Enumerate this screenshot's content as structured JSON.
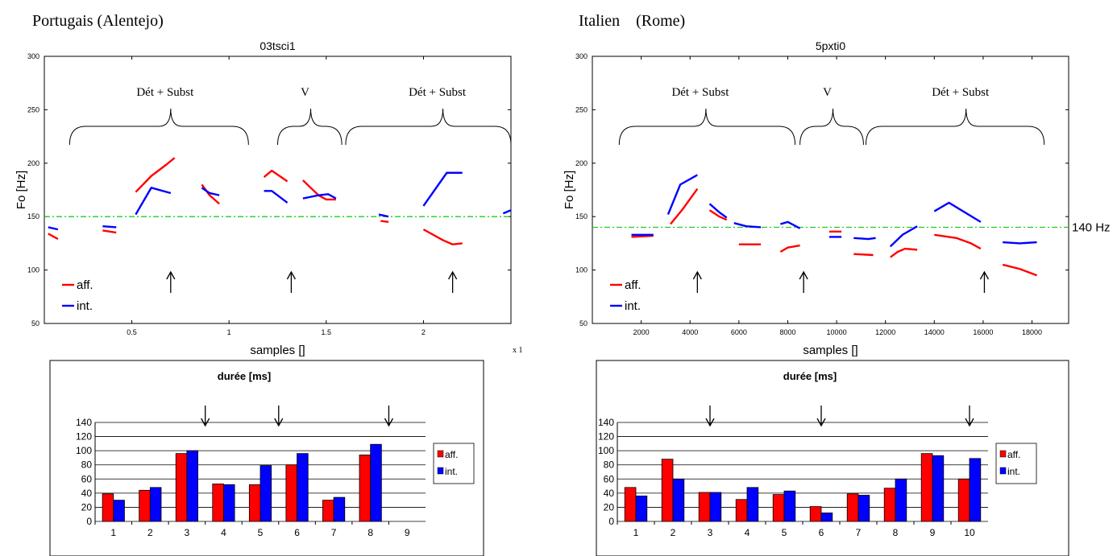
{
  "panels": [
    {
      "heading": "Portugais (Alentejo)",
      "f0": {
        "title": "03tsci1",
        "ylabel": "Fo [Hz]",
        "xlabel": "samples []",
        "x_exponent": "x 1",
        "xlim": [
          0.05,
          2.45
        ],
        "ylim": [
          50,
          300
        ],
        "yticks": [
          50,
          100,
          150,
          200,
          250,
          300
        ],
        "xticks": [
          0.5,
          1,
          1.5,
          2
        ],
        "xtick_labels": [
          "0.5",
          "1",
          "1.5",
          "2"
        ],
        "reference_level": 150,
        "reference_label": "",
        "legend": [
          {
            "name": "aff.",
            "color": "#ff0000"
          },
          {
            "name": "int.",
            "color": "#0000ff"
          }
        ],
        "groups": [
          {
            "label": "Dét + Subst",
            "x_start": 0.18,
            "x_end": 1.1,
            "tip": 0.7
          },
          {
            "label": "V",
            "x_start": 1.25,
            "x_end": 1.58,
            "tip": 1.42
          },
          {
            "label": "Dét + Subst",
            "x_start": 1.6,
            "x_end": 2.45,
            "tip": 2.1
          }
        ],
        "arrows_x": [
          0.7,
          1.32,
          2.15
        ],
        "series": [
          {
            "name": "aff.",
            "color": "#ff0000",
            "segments": [
              [
                [
                  0.07,
                  134
                ],
                [
                  0.12,
                  129
                ]
              ],
              [
                [
                  0.35,
                  137
                ],
                [
                  0.42,
                  135
                ]
              ],
              [
                [
                  0.52,
                  173
                ],
                [
                  0.6,
                  188
                ],
                [
                  0.68,
                  199
                ],
                [
                  0.72,
                  205
                ]
              ],
              [
                [
                  0.86,
                  180
                ],
                [
                  0.9,
                  170
                ],
                [
                  0.95,
                  162
                ]
              ],
              [
                [
                  1.18,
                  187
                ],
                [
                  1.22,
                  193
                ],
                [
                  1.3,
                  183
                ]
              ],
              [
                [
                  1.38,
                  184
                ],
                [
                  1.46,
                  170
                ],
                [
                  1.5,
                  166
                ],
                [
                  1.55,
                  166
                ]
              ],
              [
                [
                  1.78,
                  146
                ],
                [
                  1.82,
                  145
                ]
              ],
              [
                [
                  2.0,
                  138
                ],
                [
                  2.1,
                  128
                ],
                [
                  2.15,
                  124
                ],
                [
                  2.2,
                  125
                ]
              ]
            ]
          },
          {
            "name": "int.",
            "color": "#0000ff",
            "segments": [
              [
                [
                  0.07,
                  140
                ],
                [
                  0.12,
                  138
                ]
              ],
              [
                [
                  0.35,
                  141
                ],
                [
                  0.42,
                  140
                ]
              ],
              [
                [
                  0.52,
                  152
                ],
                [
                  0.6,
                  177
                ],
                [
                  0.7,
                  172
                ]
              ],
              [
                [
                  0.86,
                  177
                ],
                [
                  0.9,
                  172
                ],
                [
                  0.95,
                  170
                ]
              ],
              [
                [
                  1.18,
                  174
                ],
                [
                  1.22,
                  174
                ],
                [
                  1.3,
                  163
                ]
              ],
              [
                [
                  1.38,
                  167
                ],
                [
                  1.46,
                  170
                ],
                [
                  1.51,
                  171
                ],
                [
                  1.55,
                  167
                ]
              ],
              [
                [
                  1.77,
                  152
                ],
                [
                  1.82,
                  150
                ]
              ],
              [
                [
                  2.0,
                  160
                ],
                [
                  2.12,
                  191
                ],
                [
                  2.2,
                  191
                ]
              ],
              [
                [
                  2.41,
                  153
                ],
                [
                  2.45,
                  156
                ]
              ]
            ]
          }
        ]
      },
      "duree": {
        "type": "bar",
        "title": "durée [ms]",
        "categories": [
          "1",
          "2",
          "3",
          "4",
          "5",
          "6",
          "7",
          "8",
          "9"
        ],
        "ylim": [
          0,
          140
        ],
        "yticks": [
          0,
          20,
          40,
          60,
          80,
          100,
          120,
          140
        ],
        "series": [
          {
            "name": "aff.",
            "color": "#ff0000",
            "values": [
              39,
              44,
              96,
              53,
              52,
              80,
              30,
              94,
              0
            ]
          },
          {
            "name": "int.",
            "color": "#0000ff",
            "values": [
              30,
              48,
              100,
              52,
              79,
              96,
              34,
              109,
              0
            ]
          }
        ],
        "arrows_after_category": [
          3,
          5,
          8
        ]
      }
    },
    {
      "heading": "Italien    (Rome)",
      "f0": {
        "title": "5pxti0",
        "ylabel": "Fo [Hz]",
        "xlabel": "samples []",
        "x_exponent": "",
        "xlim": [
          0,
          19500
        ],
        "ylim": [
          50,
          300
        ],
        "yticks": [
          50,
          100,
          150,
          200,
          250,
          300
        ],
        "xticks": [
          2000,
          4000,
          6000,
          8000,
          10000,
          12000,
          14000,
          16000,
          18000
        ],
        "xtick_labels": [
          "2000",
          "4000",
          "6000",
          "8000",
          "10000",
          "12000",
          "14000",
          "16000",
          "18000"
        ],
        "reference_level": 140,
        "reference_label": "140 Hz",
        "legend": [
          {
            "name": "aff.",
            "color": "#ff0000"
          },
          {
            "name": "int.",
            "color": "#0000ff"
          }
        ],
        "groups": [
          {
            "label": "Dét + Subst",
            "x_start": 1100,
            "x_end": 8300,
            "tip": 4650
          },
          {
            "label": "V",
            "x_start": 8500,
            "x_end": 11100,
            "tip": 9850
          },
          {
            "label": "Dét + Subst",
            "x_start": 11200,
            "x_end": 18500,
            "tip": 15300
          }
        ],
        "arrows_x": [
          4300,
          8650,
          16050
        ],
        "series": [
          {
            "name": "aff.",
            "color": "#ff0000",
            "segments": [
              [
                [
                  1600,
                  131
                ],
                [
                  2500,
                  132
                ]
              ],
              [
                [
                  3200,
                  143
                ],
                [
                  3700,
                  157
                ],
                [
                  4300,
                  176
                ]
              ],
              [
                [
                  4800,
                  156
                ],
                [
                  5200,
                  150
                ],
                [
                  5500,
                  147
                ]
              ],
              [
                [
                  6000,
                  124
                ],
                [
                  6900,
                  124
                ]
              ],
              [
                [
                  7700,
                  117
                ],
                [
                  8000,
                  121
                ],
                [
                  8500,
                  123
                ]
              ],
              [
                [
                  9700,
                  136
                ],
                [
                  10200,
                  136
                ]
              ],
              [
                [
                  10700,
                  115
                ],
                [
                  11500,
                  114
                ]
              ],
              [
                [
                  12200,
                  112
                ],
                [
                  12500,
                  117
                ],
                [
                  12800,
                  120
                ],
                [
                  13300,
                  119
                ]
              ],
              [
                [
                  14000,
                  133
                ],
                [
                  14900,
                  130
                ],
                [
                  15500,
                  125
                ],
                [
                  15900,
                  120
                ]
              ],
              [
                [
                  16800,
                  105
                ],
                [
                  17500,
                  101
                ],
                [
                  18200,
                  95
                ]
              ]
            ]
          },
          {
            "name": "int.",
            "color": "#0000ff",
            "segments": [
              [
                [
                  1600,
                  133
                ],
                [
                  2500,
                  133
                ]
              ],
              [
                [
                  3100,
                  152
                ],
                [
                  3600,
                  180
                ],
                [
                  4300,
                  189
                ]
              ],
              [
                [
                  4800,
                  162
                ],
                [
                  5200,
                  154
                ],
                [
                  5500,
                  149
                ]
              ],
              [
                [
                  5800,
                  144
                ],
                [
                  6300,
                  141
                ],
                [
                  6900,
                  140
                ]
              ],
              [
                [
                  7700,
                  143
                ],
                [
                  8000,
                  145
                ],
                [
                  8500,
                  139
                ]
              ],
              [
                [
                  9700,
                  131
                ],
                [
                  10200,
                  131
                ]
              ],
              [
                [
                  10700,
                  130
                ],
                [
                  11300,
                  129
                ],
                [
                  11600,
                  130
                ]
              ],
              [
                [
                  12200,
                  122
                ],
                [
                  12700,
                  133
                ],
                [
                  13300,
                  141
                ]
              ],
              [
                [
                  14000,
                  155
                ],
                [
                  14600,
                  163
                ],
                [
                  15900,
                  145
                ]
              ],
              [
                [
                  16800,
                  126
                ],
                [
                  17500,
                  125
                ],
                [
                  18200,
                  126
                ]
              ]
            ]
          }
        ]
      },
      "duree": {
        "type": "bar",
        "title": "durée [ms]",
        "categories": [
          "1",
          "2",
          "3",
          "4",
          "5",
          "6",
          "7",
          "8",
          "9",
          "10"
        ],
        "ylim": [
          0,
          140
        ],
        "yticks": [
          0,
          20,
          40,
          60,
          80,
          100,
          120,
          140
        ],
        "series": [
          {
            "name": "aff.",
            "color": "#ff0000",
            "values": [
              48,
              88,
              41,
              31,
              38,
              21,
              39,
              47,
              96,
              60
            ]
          },
          {
            "name": "int.",
            "color": "#0000ff",
            "values": [
              36,
              60,
              41,
              48,
              43,
              12,
              37,
              60,
              93,
              89
            ]
          }
        ],
        "arrows_after_category": [
          2.5,
          5.5,
          9.5
        ]
      }
    }
  ],
  "chart_data": [
    {
      "type": "line",
      "title": "03tsci1",
      "xlabel": "samples []",
      "ylabel": "Fo [Hz]",
      "xlim": [
        0.05,
        2.45
      ],
      "ylim": [
        50,
        300
      ],
      "grid": false,
      "legend": "bottom-left",
      "series": [
        {
          "name": "aff.",
          "segments": "see panels.0.f0.series.0"
        },
        {
          "name": "int.",
          "segments": "see panels.0.f0.series.1"
        }
      ]
    },
    {
      "type": "line",
      "title": "5pxti0",
      "xlabel": "samples []",
      "ylabel": "Fo [Hz]",
      "xlim": [
        0,
        19500
      ],
      "ylim": [
        50,
        300
      ],
      "grid": false,
      "legend": "bottom-left",
      "series": [
        {
          "name": "aff.",
          "segments": "see panels.1.f0.series.0"
        },
        {
          "name": "int.",
          "segments": "see panels.1.f0.series.1"
        }
      ]
    },
    {
      "type": "bar",
      "title": "durée [ms]",
      "categories": [
        "1",
        "2",
        "3",
        "4",
        "5",
        "6",
        "7",
        "8",
        "9"
      ],
      "ylim": [
        0,
        140
      ],
      "grid": true,
      "legend": "right",
      "series": [
        {
          "name": "aff.",
          "values": [
            39,
            44,
            96,
            53,
            52,
            80,
            30,
            94,
            0
          ]
        },
        {
          "name": "int.",
          "values": [
            30,
            48,
            100,
            52,
            79,
            96,
            34,
            109,
            0
          ]
        }
      ]
    },
    {
      "type": "bar",
      "title": "durée [ms]",
      "categories": [
        "1",
        "2",
        "3",
        "4",
        "5",
        "6",
        "7",
        "8",
        "9",
        "10"
      ],
      "ylim": [
        0,
        140
      ],
      "grid": true,
      "legend": "right",
      "series": [
        {
          "name": "aff.",
          "values": [
            48,
            88,
            41,
            31,
            38,
            21,
            39,
            47,
            96,
            60
          ]
        },
        {
          "name": "int.",
          "values": [
            36,
            60,
            41,
            48,
            43,
            12,
            37,
            60,
            93,
            89
          ]
        }
      ]
    }
  ]
}
